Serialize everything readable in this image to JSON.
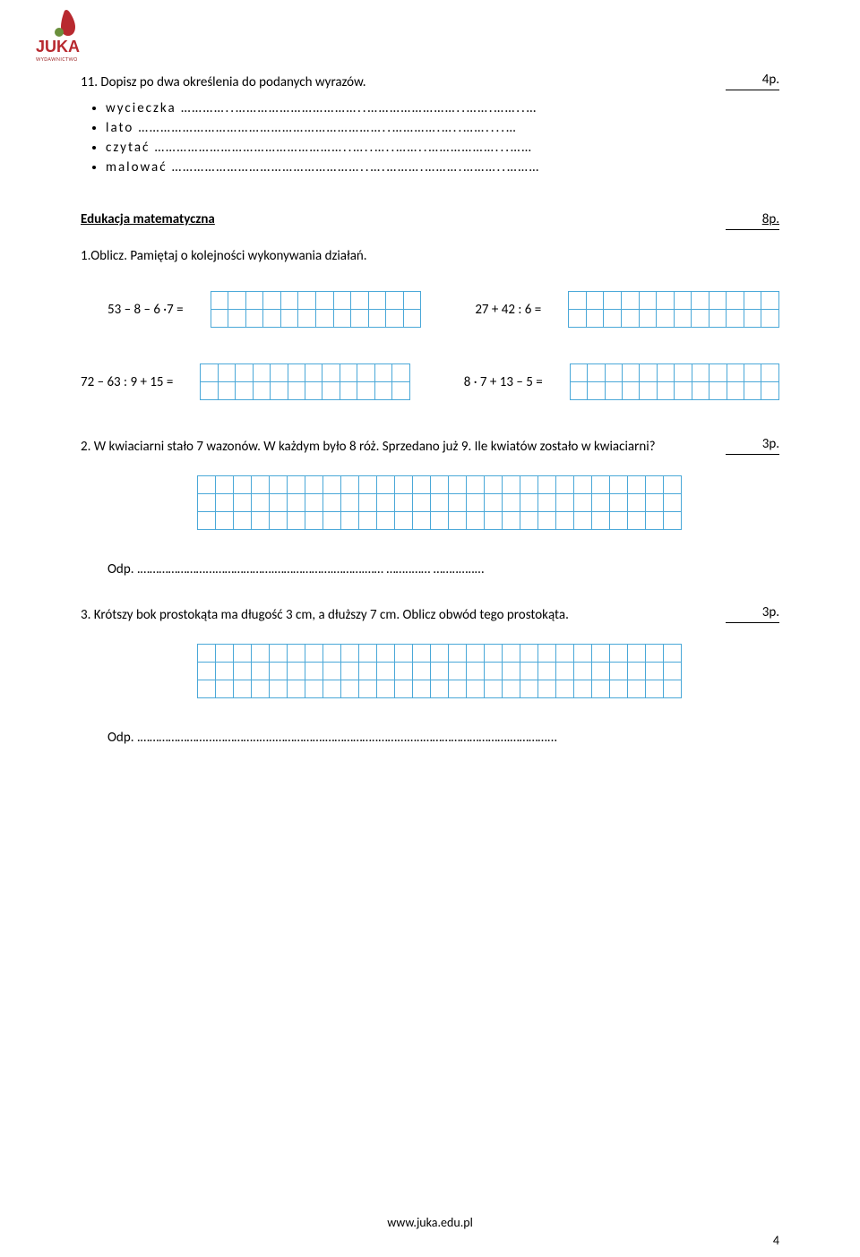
{
  "logo": {
    "brand": "JUKA",
    "subtext": "WYDAWNICTWO",
    "red": "#b8292f",
    "green": "#6a8f3c"
  },
  "grid_border": "#4aa8d8",
  "task11": {
    "text": "11. Dopisz po dwa określenia do podanych wyrazów.",
    "points": "4p.",
    "bullets": [
      "wycieczka …………..……………………………..……………………..…….……..…",
      "lato …………………………………………………………..………….…..……....…",
      "czytać ……………………………………………..…..…..……..………………...……",
      "malować ……………………………………………..….……….……….………..………"
    ]
  },
  "math_section": {
    "title": "Edukacja matematyczna",
    "points": "8p.",
    "instruction": "1.Oblicz. Pamiętaj o kolejności wykonywania działań.",
    "row1": {
      "left": "53 – 8 – 6 ·7 =",
      "right": "27 + 42 : 6 ="
    },
    "row2": {
      "left": "72 – 63 : 9 + 15 =",
      "right": "8 · 7 + 13 – 5 ="
    },
    "small_grid": {
      "cols": 12,
      "rows": 2
    }
  },
  "task2": {
    "text": "2. W kwiaciarni stało 7 wazonów. W każdym było 8 róż. Sprzedano już 9. Ile kwiatów zostało w kwiaciarni?",
    "points": "3p.",
    "grid": {
      "cols": 27,
      "rows": 3
    },
    "answer": "Odp. .…………………...……………….……………….……….…… ……..…… ……..…..…"
  },
  "task3": {
    "text": "3. Krótszy bok prostokąta ma długość 3 cm,  a dłuższy 7 cm. Oblicz obwód tego prostokąta.",
    "points": "3p.",
    "grid": {
      "cols": 27,
      "rows": 3
    },
    "answer": "Odp. .…………………...…………..…..…………….……………..……...…..……………………….…………..."
  },
  "footer": {
    "url": "www.juka.edu.pl",
    "page": "4"
  }
}
